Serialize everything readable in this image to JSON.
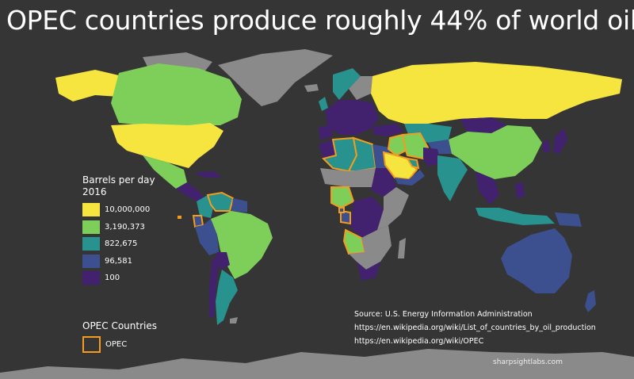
{
  "title": "OPEC countries produce roughly 44% of world oil",
  "colors": {
    "background": "#353535",
    "no_data": "#8a8a8a",
    "opec_border": "#f39c1d"
  },
  "legend": {
    "title_line1": "Barrels per day",
    "title_line2": "2016",
    "items": [
      {
        "label": "10,000,000",
        "color": "#f6e43f"
      },
      {
        "label": "3,190,373",
        "color": "#7ecf5a"
      },
      {
        "label": "822,675",
        "color": "#27928e"
      },
      {
        "label": "96,581",
        "color": "#3c4f8f"
      },
      {
        "label": "100",
        "color": "#42216e"
      }
    ]
  },
  "opec_legend": {
    "title": "OPEC Countries",
    "label": "OPEC"
  },
  "source": {
    "line1": "Source: U.S. Energy Information Administration",
    "line2": "https://en.wikipedia.org/wiki/List_of_countries_by_oil_production",
    "line3": "https://en.wikipedia.org/wiki/OPEC"
  },
  "credit": "sharpsightlabs.com"
}
